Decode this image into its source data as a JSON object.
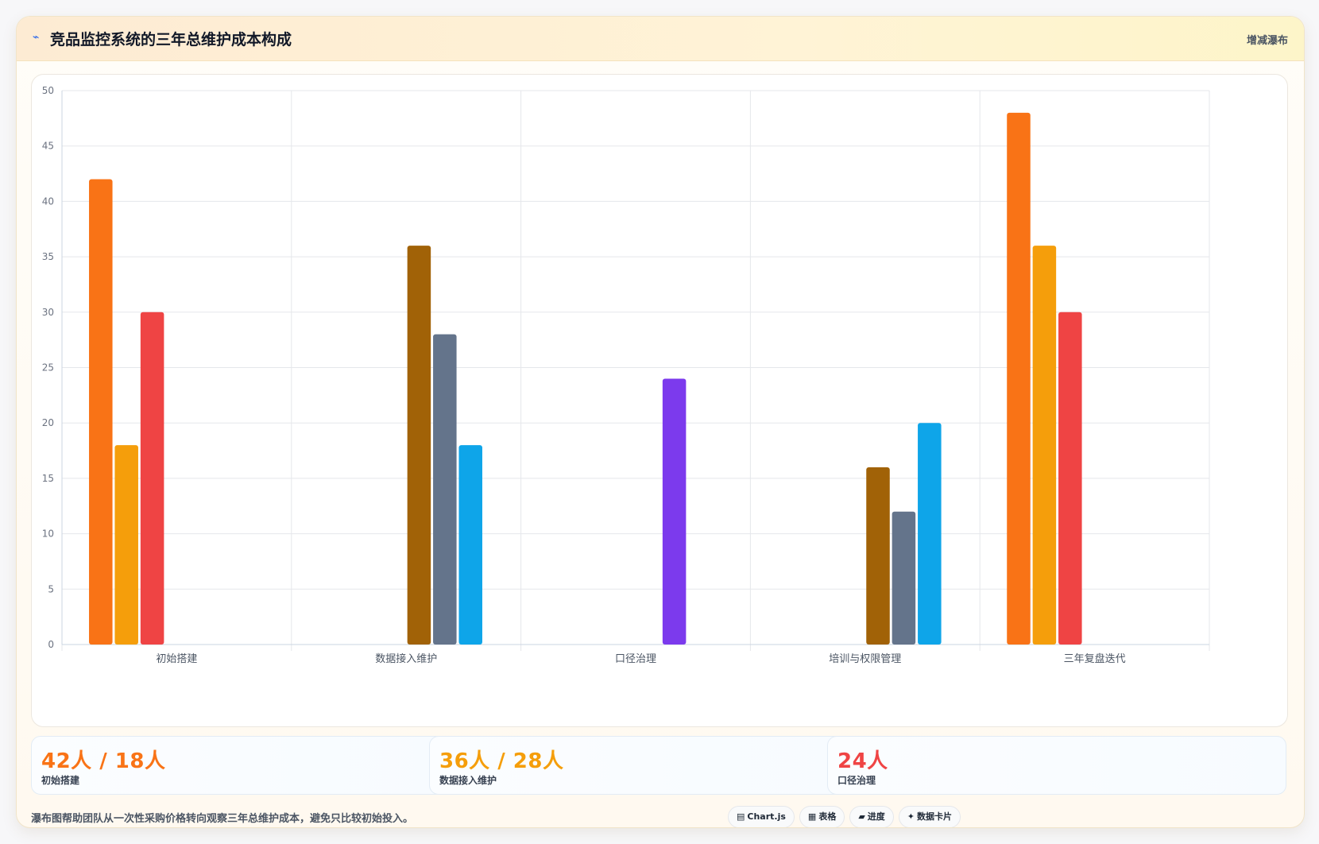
{
  "header": {
    "icon": "waterfall-line-icon",
    "title": "竞品监控系统的三年总维护成本构成",
    "tag": "增减瀑布"
  },
  "chart_data": {
    "type": "bar",
    "ylim": [
      0,
      50
    ],
    "yticks": [
      0,
      5,
      10,
      15,
      20,
      25,
      30,
      35,
      40,
      45,
      50
    ],
    "grid": true,
    "categories": [
      "初始搭建",
      "数据接入维护",
      "口径治理",
      "培训与权限管理",
      "三年复盘迭代"
    ],
    "groups": [
      {
        "bars": [
          {
            "value": 42,
            "color": "#f97316"
          },
          {
            "value": 18,
            "color": "#f59e0b"
          },
          {
            "value": 30,
            "color": "#ef4444"
          }
        ]
      },
      {
        "bars": [
          {
            "value": 36,
            "color": "#a16207"
          },
          {
            "value": 28,
            "color": "#64748b"
          },
          {
            "value": 18,
            "color": "#0ea5e9"
          }
        ]
      },
      {
        "bars": [
          {
            "value": 24,
            "color": "#7c3aed"
          }
        ]
      },
      {
        "bars": [
          {
            "value": 16,
            "color": "#a16207"
          },
          {
            "value": 12,
            "color": "#64748b"
          },
          {
            "value": 20,
            "color": "#0ea5e9"
          }
        ]
      },
      {
        "bars": [
          {
            "value": 48,
            "color": "#f97316"
          },
          {
            "value": 36,
            "color": "#f59e0b"
          },
          {
            "value": 30,
            "color": "#ef4444"
          }
        ]
      }
    ]
  },
  "stats": [
    {
      "value": "42人 / 18人",
      "label": "初始搭建",
      "color": "#f97316"
    },
    {
      "value": "36人 / 28人",
      "label": "数据接入维护",
      "color": "#f59e0b"
    },
    {
      "value": "24人",
      "label": "口径治理",
      "color": "#ef4444"
    }
  ],
  "footer": {
    "note": "瀑布图帮助团队从一次性采购价格转向观察三年总维护成本，避免只比较初始投入。",
    "chips": [
      {
        "icon": "▤",
        "label": "Chart.js"
      },
      {
        "icon": "▦",
        "label": "表格"
      },
      {
        "icon": "▰",
        "label": "进度"
      },
      {
        "icon": "✦",
        "label": "数据卡片"
      }
    ]
  }
}
